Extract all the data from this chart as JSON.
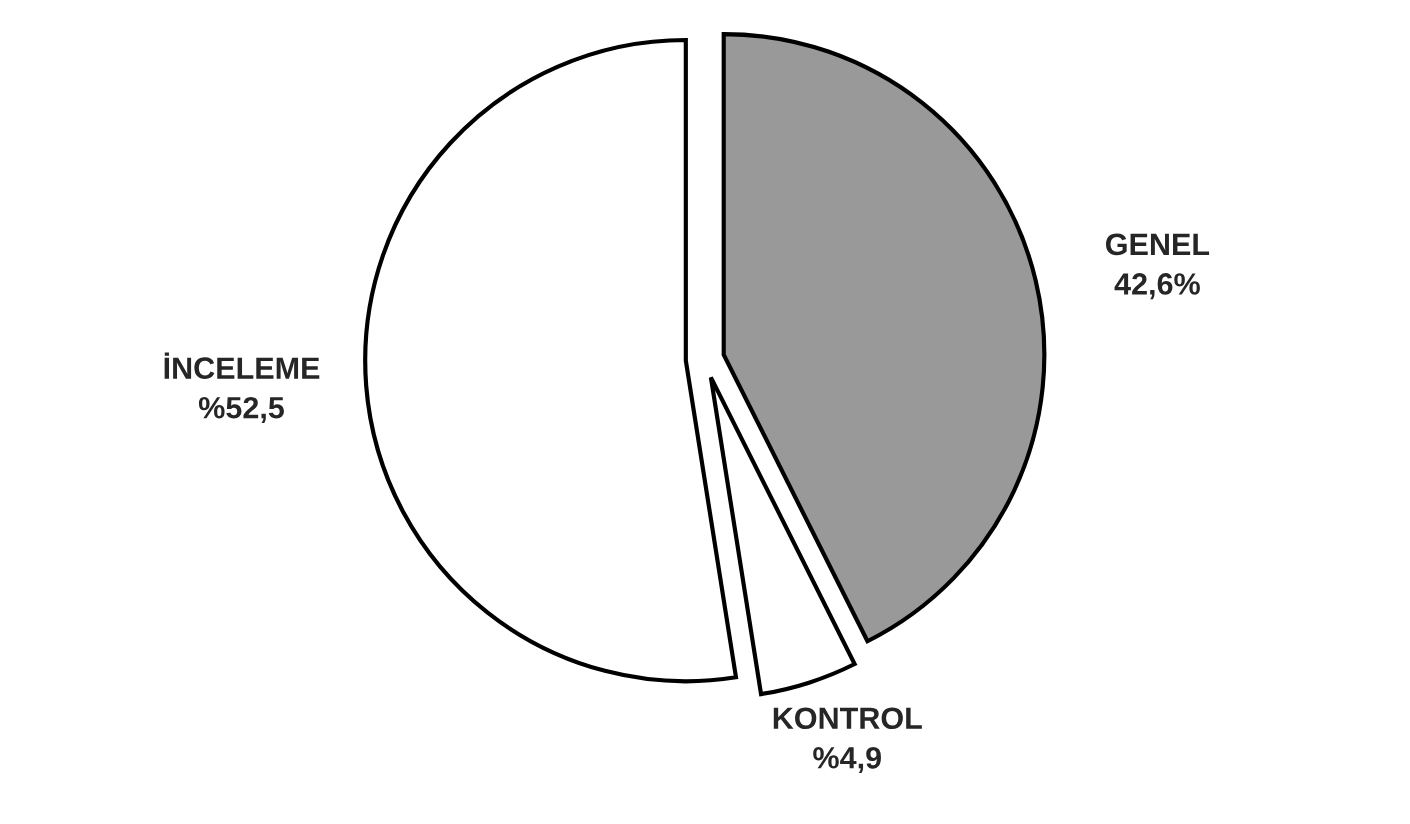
{
  "chart_data": {
    "type": "pie",
    "categories": [
      "GENEL",
      "KONTROL",
      "İNCELEME"
    ],
    "values": [
      42.6,
      4.9,
      52.5
    ],
    "value_labels": [
      "42,6%",
      "%4,9",
      "%52,5"
    ],
    "colors": [
      "#999999",
      "#ffffff",
      "#ffffff"
    ],
    "legend": false
  }
}
